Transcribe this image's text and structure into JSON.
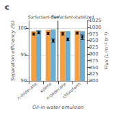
{
  "chart_data": {
    "type": "bar",
    "title": "c",
    "annotations": [
      "Surfactant-free",
      "Surfactant-stabilized"
    ],
    "xlabel": "Oil-in-water emulsion",
    "ylabel": "Separation efficiency (%)",
    "y2label": "Flux (L·m⁻²·h⁻¹)",
    "categories": [
      "n-dodecane",
      "xylene",
      "n-dodecane",
      "chloroform"
    ],
    "series": [
      {
        "type": "bar",
        "color": "#F5A040",
        "values": [
          99.5,
          99.7,
          99.5,
          99.6
        ]
      },
      {
        "type": "bar",
        "color": "#6AAED6",
        "values": [
          99.7,
          99.8,
          99.5,
          99.5
        ]
      },
      {
        "type": "scatter",
        "axis": "y2",
        "marker": "square",
        "color": "#000000",
        "values": [
          975,
          977,
          976,
          978
        ],
        "errors": [
          4,
          4,
          5,
          4
        ]
      },
      {
        "type": "scatter",
        "axis": "y2",
        "marker": "square",
        "color": "#000000",
        "values": [
          980,
          950,
          955,
          963
        ],
        "errors": [
          4,
          6,
          5,
          8
        ]
      }
    ],
    "ylim": [
      90,
      101.5
    ],
    "yticks": [
      90,
      95,
      100
    ],
    "y2lim": [
      800,
      1025
    ],
    "y2ticks": [
      800,
      825,
      850,
      875,
      900,
      925,
      950,
      975,
      1000,
      1025
    ],
    "grid": true
  }
}
